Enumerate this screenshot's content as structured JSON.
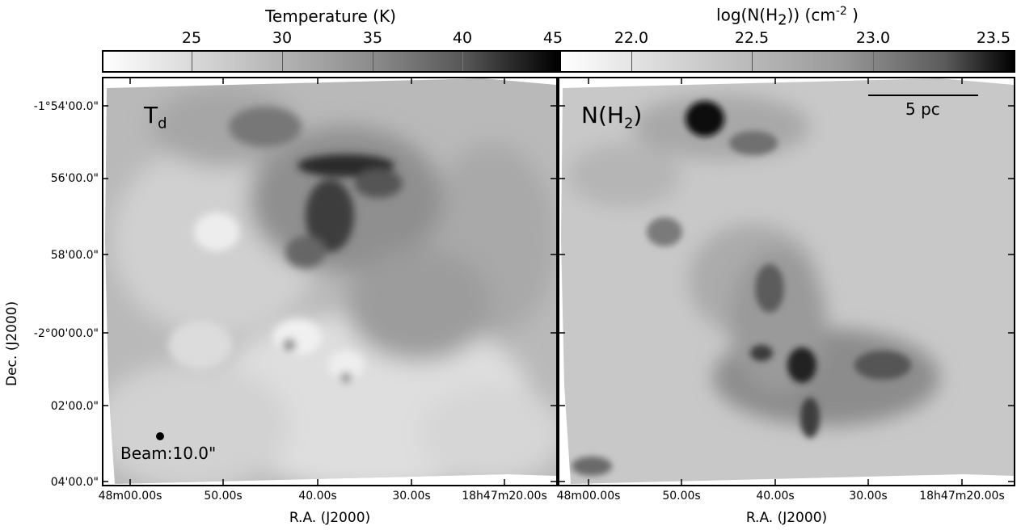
{
  "colorbars": {
    "temperature": {
      "title": "Temperature (K)",
      "ticks": [
        "25",
        "30",
        "35",
        "40",
        "45"
      ],
      "tick_values": [
        25,
        30,
        35,
        40,
        45
      ],
      "range": [
        20,
        45
      ]
    },
    "column_density": {
      "title_main": "log(N(H",
      "title_sub": "2",
      "title_mid": ")) (cm",
      "title_sup": "-2",
      "title_end": " )",
      "ticks": [
        "22.0",
        "22.5",
        "23.0",
        "23.5"
      ],
      "tick_values": [
        22.0,
        22.5,
        23.0,
        23.5
      ],
      "range": [
        21.6,
        23.6
      ]
    }
  },
  "panels": {
    "left": {
      "label_main": "T",
      "label_sub": "d",
      "beam_label": "Beam:10.0\""
    },
    "right": {
      "label_main": "N(H",
      "label_sub": "2",
      "label_end": ")",
      "scalebar_label": "5 pc"
    }
  },
  "axes": {
    "xlabel": "R.A. (J2000)",
    "ylabel": "Dec. (J2000)",
    "x_ticks": [
      "48m00.00s",
      "50.00s",
      "40.00s",
      "30.00s",
      "18h47m20.00s"
    ],
    "y_ticks": [
      "-1°54'00.0\"",
      "56'00.0\"",
      "58'00.0\"",
      "-2°00'00.0\"",
      "02'00.0\"",
      "04'00.0\""
    ]
  },
  "colors": {
    "min": "#ffffff",
    "max": "#000000",
    "map_base": "#c4c4c4"
  }
}
